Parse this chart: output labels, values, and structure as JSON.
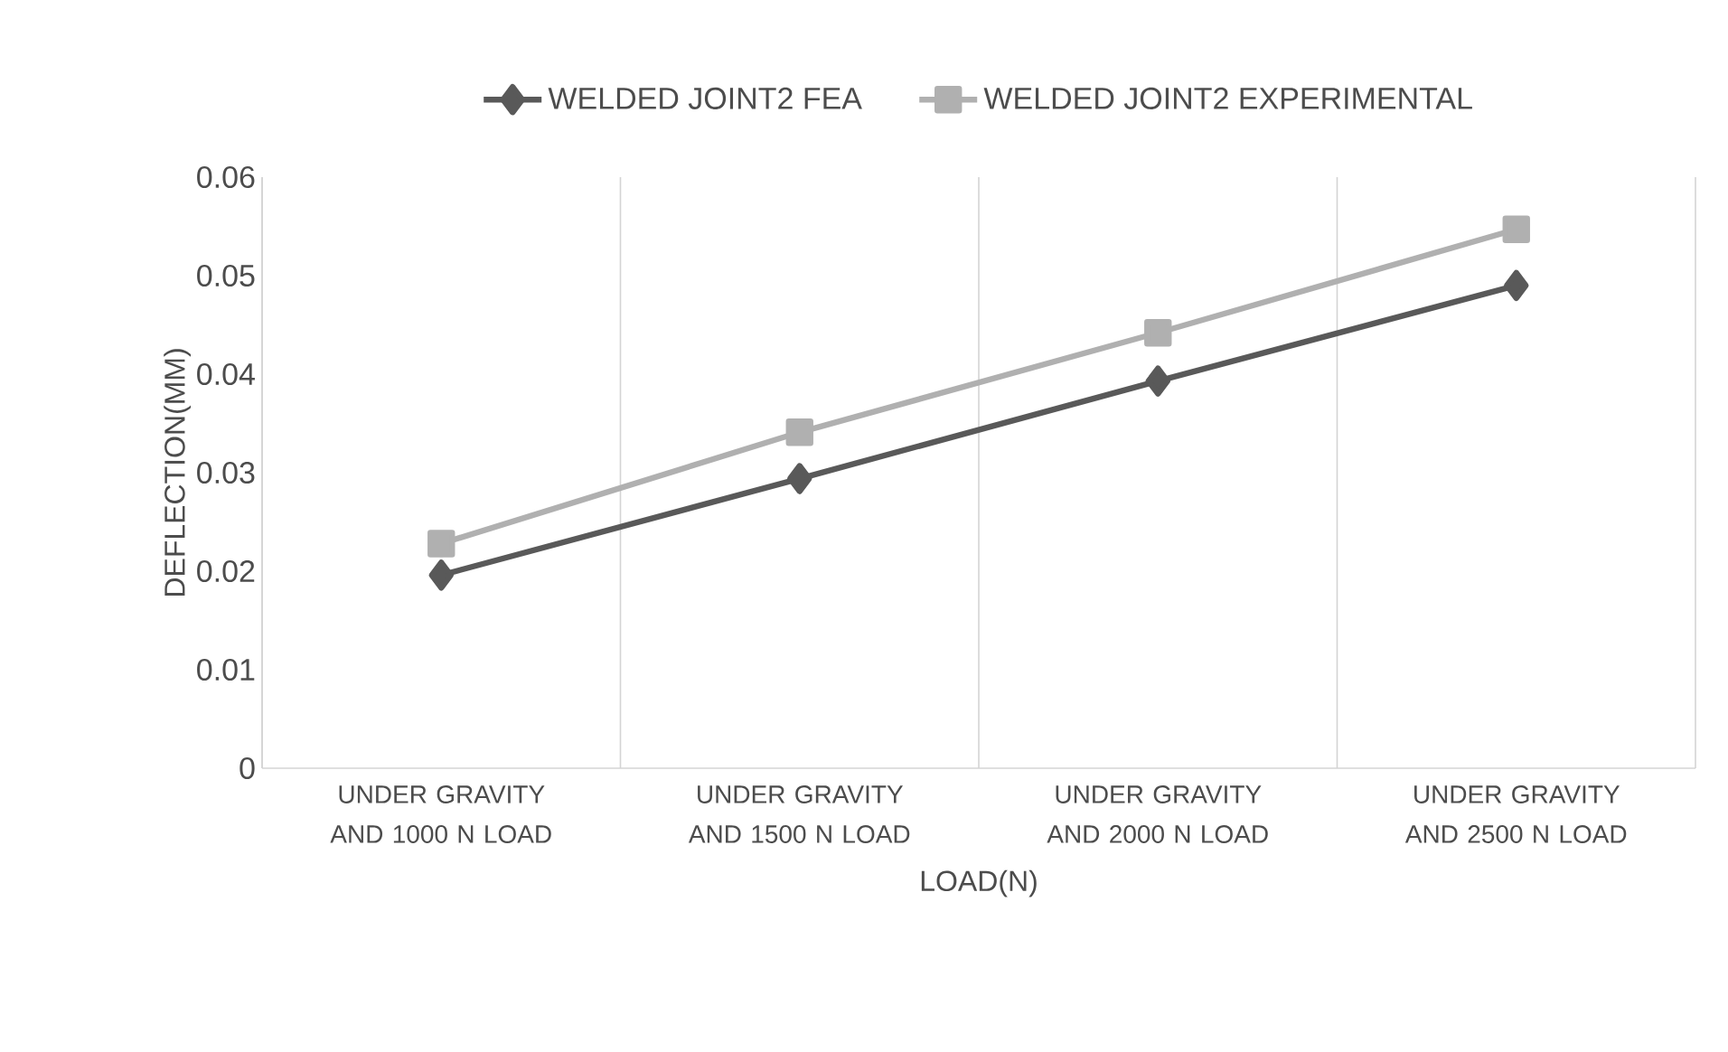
{
  "chart_data": {
    "type": "line",
    "xlabel": "LOAD(N)",
    "ylabel": "DEFLECTION(MM)",
    "categories": [
      "UNDER GRAVITY AND 1000 N LOAD",
      "UNDER GRAVITY AND 1500 N LOAD",
      "UNDER GRAVITY AND 2000 N LOAD",
      "UNDER GRAVITY AND 2500 N LOAD"
    ],
    "series": [
      {
        "name": "WELDED JOINT2 FEA",
        "color": "#595959",
        "marker": "diamond",
        "values": [
          0.0196,
          0.0294,
          0.0393,
          0.049
        ]
      },
      {
        "name": "WELDED JOINT2 EXPERIMENTAL",
        "color": "#b0b0b0",
        "marker": "square",
        "values": [
          0.0228,
          0.0341,
          0.0442,
          0.0547
        ]
      }
    ],
    "ylim": [
      0,
      0.06
    ],
    "yticks": [
      0,
      0.01,
      0.02,
      0.03,
      0.04,
      0.05,
      0.06
    ],
    "grid": "x",
    "legend": "top",
    "line_style": "solid"
  }
}
